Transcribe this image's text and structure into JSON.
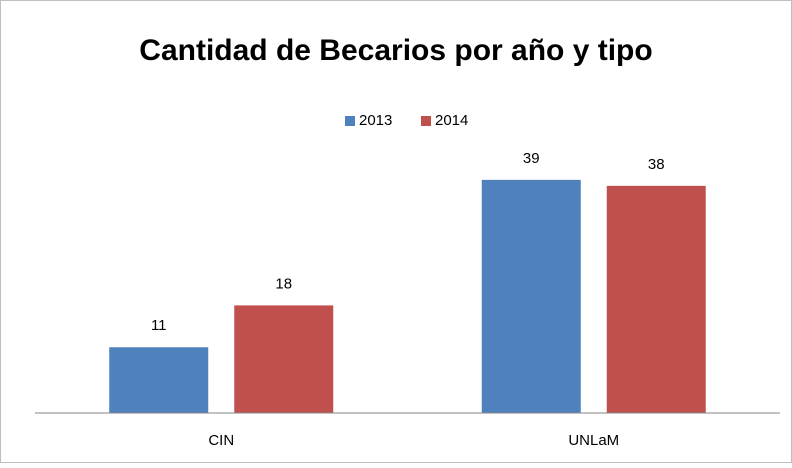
{
  "chart_data": {
    "type": "bar",
    "title": "Cantidad de Becarios por año y tipo",
    "categories": [
      "CIN",
      "UNLaM"
    ],
    "series": [
      {
        "name": "2013",
        "color": "#4f81bd",
        "values": [
          11,
          39
        ]
      },
      {
        "name": "2014",
        "color": "#c0504d",
        "values": [
          18,
          38
        ]
      }
    ],
    "ylim": [
      0,
      45
    ],
    "legend": "top"
  }
}
